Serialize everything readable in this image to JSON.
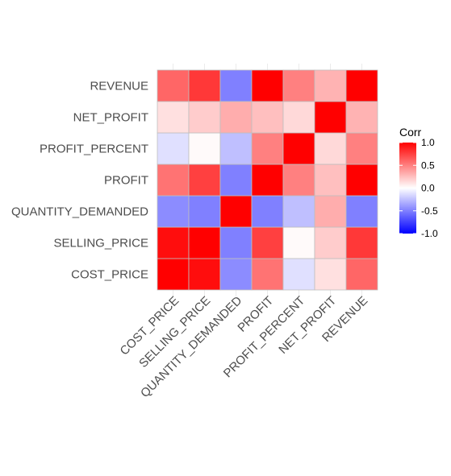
{
  "chart_data": {
    "type": "heatmap",
    "x_categories": [
      "COST_PRICE",
      "SELLING_PRICE",
      "QUANTITY_DEMANDED",
      "PROFIT",
      "PROFIT_PERCENT",
      "NET_PROFIT",
      "REVENUE"
    ],
    "y_categories": [
      "COST_PRICE",
      "SELLING_PRICE",
      "QUANTITY_DEMANDED",
      "PROFIT",
      "PROFIT_PERCENT",
      "NET_PROFIT",
      "REVENUE"
    ],
    "matrix": [
      [
        1.0,
        0.95,
        -0.45,
        0.55,
        -0.12,
        0.12,
        0.6
      ],
      [
        0.95,
        1.0,
        -0.5,
        0.75,
        0.02,
        0.2,
        0.78
      ],
      [
        -0.45,
        -0.5,
        1.0,
        -0.5,
        -0.25,
        0.32,
        -0.5
      ],
      [
        0.55,
        0.75,
        -0.5,
        1.0,
        0.5,
        0.25,
        1.0
      ],
      [
        -0.12,
        0.02,
        -0.25,
        0.5,
        1.0,
        0.15,
        0.5
      ],
      [
        0.12,
        0.2,
        0.32,
        0.25,
        0.15,
        1.0,
        0.3
      ],
      [
        0.6,
        0.78,
        -0.5,
        1.0,
        0.5,
        0.3,
        1.0
      ]
    ],
    "value_range": [
      -1,
      1
    ],
    "colors": {
      "low": "#0000ff",
      "mid": "#ffffff",
      "high": "#ff0000",
      "cell_border": "#bfbfbf",
      "panel_grid": "#ebebeb"
    },
    "legend": {
      "title": "Corr",
      "position": "right",
      "ticks": [
        1.0,
        0.5,
        0.0,
        -0.5,
        -1.0
      ],
      "tick_labels": [
        "1.0",
        "0.5",
        "0.0",
        "-0.5",
        "-1.0"
      ]
    }
  }
}
